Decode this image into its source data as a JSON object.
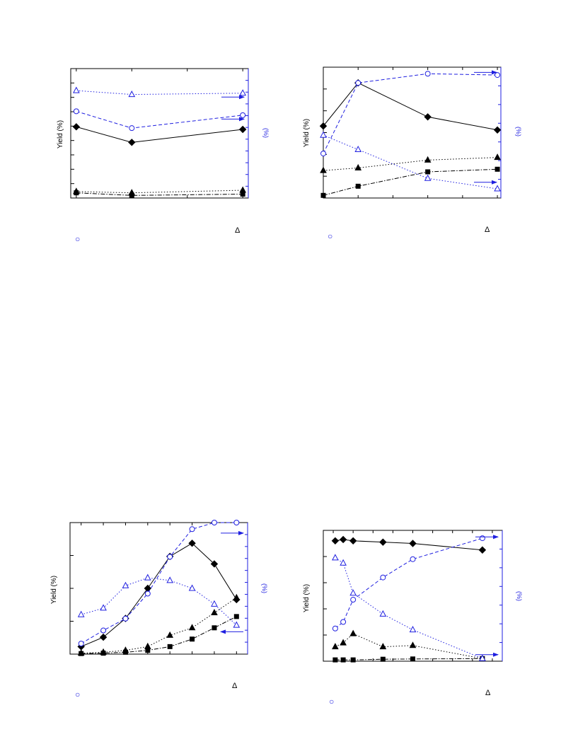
{
  "colors": {
    "black": "#000000",
    "blue": "#1f1fe0"
  },
  "chart_data": [
    {
      "type": "line",
      "ylabel": "Yield (%)",
      "y2label": "(%)",
      "x": [
        0,
        1,
        3
      ],
      "xlim": [
        -0.1,
        3.1
      ],
      "ylim": [
        0,
        100
      ],
      "y2lim": [
        0,
        100
      ],
      "series": [
        {
          "axis": "left",
          "marker": "diamond",
          "style": "solid",
          "color": "#000000",
          "values": [
            55,
            43,
            53
          ]
        },
        {
          "axis": "left",
          "marker": "triangle",
          "style": "dotted",
          "color": "#000000",
          "values": [
            5,
            4,
            6
          ]
        },
        {
          "axis": "left",
          "marker": "square",
          "style": "dashdot",
          "color": "#000000",
          "values": [
            4,
            2,
            3
          ]
        },
        {
          "axis": "right",
          "marker": "circle-open",
          "style": "dashed",
          "color": "#1f1fe0",
          "values": [
            67,
            54,
            64
          ]
        },
        {
          "axis": "right",
          "marker": "triangle-open",
          "style": "dotted",
          "color": "#1f1fe0",
          "values": [
            83,
            80,
            81
          ]
        }
      ],
      "arrows": [
        {
          "direction": "right",
          "y2": 78
        },
        {
          "direction": "right",
          "y2": 61
        }
      ],
      "notes": [
        {
          "text": "Δ",
          "where": "below-right"
        },
        {
          "text": "○",
          "where": "below-left"
        }
      ]
    },
    {
      "type": "line",
      "ylabel": "Yield (%)",
      "y2label": "(%)",
      "x": [
        0,
        0.2,
        0.6,
        1.0
      ],
      "xlim": [
        0,
        1.02
      ],
      "ylim": [
        0,
        100
      ],
      "y2lim": [
        0,
        100
      ],
      "series": [
        {
          "axis": "left",
          "marker": "diamond",
          "style": "solid",
          "color": "#000000",
          "values": [
            55,
            88,
            62,
            52
          ]
        },
        {
          "axis": "left",
          "marker": "triangle",
          "style": "dotted",
          "color": "#000000",
          "values": [
            21,
            23,
            29,
            31
          ]
        },
        {
          "axis": "left",
          "marker": "square",
          "style": "dashdot",
          "color": "#000000",
          "values": [
            2,
            9,
            20,
            22
          ]
        },
        {
          "axis": "right",
          "marker": "circle-open",
          "style": "dashed",
          "color": "#1f1fe0",
          "values": [
            34,
            88,
            95,
            94
          ]
        },
        {
          "axis": "right",
          "marker": "triangle-open",
          "style": "dotted",
          "color": "#1f1fe0",
          "values": [
            48,
            37,
            15,
            7
          ]
        }
      ],
      "arrows": [
        {
          "direction": "right",
          "y2": 96
        },
        {
          "direction": "right",
          "y2": 12
        }
      ],
      "notes": [
        {
          "text": "Δ",
          "where": "below-right"
        },
        {
          "text": "○",
          "where": "below-left"
        }
      ]
    },
    {
      "type": "line",
      "ylabel": "Yield (%)",
      "y2label": "(%)",
      "x": [
        0,
        1,
        2,
        3,
        4,
        5,
        6,
        7
      ],
      "xlim": [
        -0.5,
        7.5
      ],
      "ylim": [
        0,
        70
      ],
      "y2lim": [
        0,
        100
      ],
      "series": [
        {
          "axis": "left",
          "marker": "diamond",
          "style": "solid",
          "color": "#000000",
          "values": [
            4,
            9,
            19,
            35,
            52,
            59,
            48,
            29
          ]
        },
        {
          "axis": "left",
          "marker": "triangle",
          "style": "dotted",
          "color": "#000000",
          "values": [
            0.5,
            1,
            2,
            4,
            10,
            14,
            22,
            30
          ]
        },
        {
          "axis": "left",
          "marker": "square",
          "style": "dashdot",
          "color": "#000000",
          "values": [
            0.3,
            0.5,
            1,
            2,
            4,
            8,
            14,
            20
          ]
        },
        {
          "axis": "right",
          "marker": "circle-open",
          "style": "dashed",
          "color": "#1f1fe0",
          "values": [
            8,
            18,
            27,
            46,
            74,
            95,
            100,
            100
          ]
        },
        {
          "axis": "right",
          "marker": "triangle-open",
          "style": "dotted",
          "color": "#1f1fe0",
          "values": [
            30,
            35,
            52,
            58,
            56,
            50,
            38,
            22
          ]
        }
      ],
      "arrows": [
        {
          "direction": "right",
          "y2": 92
        },
        {
          "direction": "left",
          "y2": 17
        }
      ],
      "notes": [
        {
          "text": "Δ",
          "where": "below-right"
        },
        {
          "text": "○",
          "where": "below-left"
        }
      ]
    },
    {
      "type": "line",
      "ylabel": "Yield (%)",
      "y2label": "(%)",
      "x": [
        0.1,
        0.5,
        1,
        2.5,
        4,
        7.5
      ],
      "xlim": [
        -0.5,
        8.5
      ],
      "ylim": [
        0,
        100
      ],
      "y2lim": [
        0,
        100
      ],
      "series": [
        {
          "axis": "left",
          "marker": "diamond",
          "style": "solid",
          "color": "#000000",
          "values": [
            92,
            93,
            92,
            91,
            90,
            85
          ]
        },
        {
          "axis": "left",
          "marker": "triangle",
          "style": "dotted",
          "color": "#000000",
          "values": [
            11,
            14,
            21,
            11,
            12,
            2
          ]
        },
        {
          "axis": "left",
          "marker": "square",
          "style": "dashdot",
          "color": "#000000",
          "values": [
            1,
            1,
            1,
            1.5,
            1.7,
            2
          ]
        },
        {
          "axis": "right",
          "marker": "circle-open",
          "style": "dashed",
          "color": "#1f1fe0",
          "values": [
            25,
            30,
            47,
            64,
            78,
            94
          ]
        },
        {
          "axis": "right",
          "marker": "triangle-open",
          "style": "dotted",
          "color": "#1f1fe0",
          "values": [
            79,
            75,
            52,
            36,
            24,
            2
          ]
        }
      ],
      "arrows": [
        {
          "direction": "right",
          "y2": 95
        },
        {
          "direction": "right",
          "y2": 5
        }
      ],
      "notes": [
        {
          "text": "Δ",
          "where": "below-right"
        },
        {
          "text": "○",
          "where": "below-left"
        }
      ]
    }
  ]
}
